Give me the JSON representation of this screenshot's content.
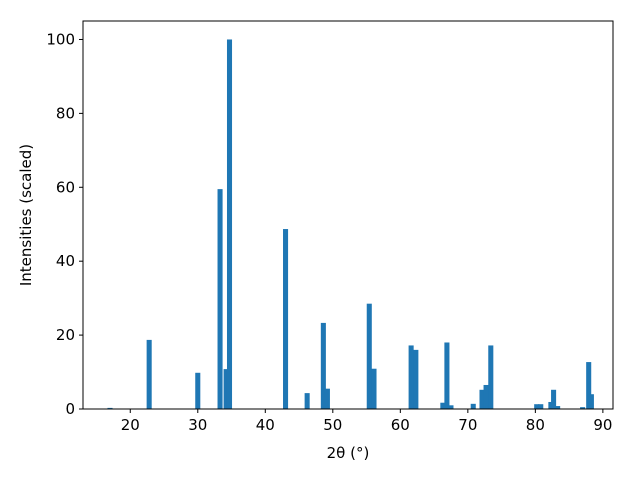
{
  "chart_data": {
    "type": "bar",
    "xlabel": "2θ (°)",
    "ylabel": "Intensities (scaled)",
    "x": [
      17.0,
      22.8,
      30.0,
      33.3,
      34.2,
      34.7,
      43.0,
      46.2,
      48.6,
      49.2,
      55.4,
      56.1,
      61.6,
      62.3,
      66.3,
      66.9,
      67.5,
      70.8,
      72.1,
      72.7,
      73.4,
      80.2,
      80.8,
      82.3,
      82.7,
      83.3,
      87.0,
      87.9,
      88.3
    ],
    "values": [
      0.3,
      18.7,
      9.8,
      59.5,
      10.8,
      100,
      48.7,
      4.3,
      23.3,
      5.5,
      28.5,
      10.9,
      17.2,
      16.0,
      1.7,
      18.0,
      1.0,
      1.4,
      5.2,
      6.5,
      17.2,
      1.3,
      1.3,
      1.9,
      5.2,
      0.8,
      0.5,
      12.7,
      4.0
    ],
    "color": "#1f77b4",
    "xlim": [
      13.0,
      91.5
    ],
    "xticks": [
      20,
      30,
      40,
      50,
      60,
      70,
      80,
      90
    ],
    "ylim": [
      0,
      105
    ],
    "yticks": [
      0,
      20,
      40,
      60,
      80,
      100
    ]
  }
}
